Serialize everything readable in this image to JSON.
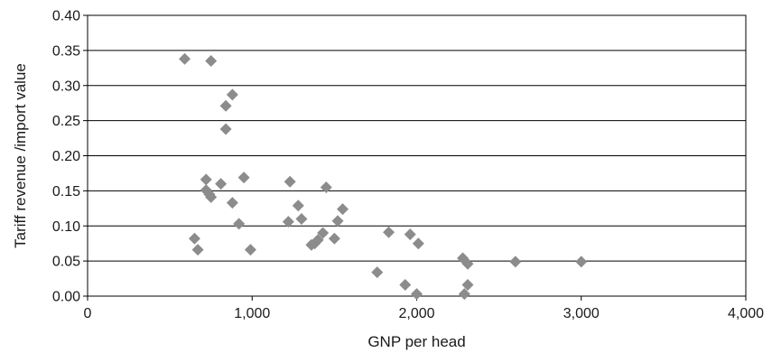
{
  "chart_data": {
    "type": "scatter",
    "title": "",
    "xlabel": "GNP per head",
    "ylabel": "Tariff revenue /import value",
    "xlim": [
      0,
      4000
    ],
    "ylim": [
      0,
      0.4
    ],
    "x_ticks": [
      "0",
      "1,000",
      "2,000",
      "3,000",
      "4,000"
    ],
    "x_tick_values": [
      0,
      1000,
      2000,
      3000,
      4000
    ],
    "y_ticks": [
      "0.00",
      "0.05",
      "0.10",
      "0.15",
      "0.20",
      "0.25",
      "0.30",
      "0.35",
      "0.40"
    ],
    "y_tick_values": [
      0,
      0.05,
      0.1,
      0.15,
      0.2,
      0.25,
      0.3,
      0.35,
      0.4
    ],
    "grid": "horizontal",
    "marker": "diamond",
    "marker_color": "#8c8c8c",
    "series": [
      {
        "points": [
          [
            590,
            0.338
          ],
          [
            750,
            0.335
          ],
          [
            880,
            0.287
          ],
          [
            840,
            0.271
          ],
          [
            840,
            0.238
          ],
          [
            720,
            0.166
          ],
          [
            810,
            0.16
          ],
          [
            950,
            0.169
          ],
          [
            1230,
            0.163
          ],
          [
            1450,
            0.155
          ],
          [
            720,
            0.151
          ],
          [
            740,
            0.145
          ],
          [
            750,
            0.141
          ],
          [
            880,
            0.133
          ],
          [
            1280,
            0.129
          ],
          [
            1550,
            0.124
          ],
          [
            1300,
            0.11
          ],
          [
            1220,
            0.106
          ],
          [
            1520,
            0.107
          ],
          [
            920,
            0.103
          ],
          [
            1830,
            0.091
          ],
          [
            1960,
            0.088
          ],
          [
            1430,
            0.09
          ],
          [
            1400,
            0.08
          ],
          [
            1380,
            0.075
          ],
          [
            1500,
            0.082
          ],
          [
            2010,
            0.075
          ],
          [
            1360,
            0.073
          ],
          [
            650,
            0.082
          ],
          [
            670,
            0.066
          ],
          [
            990,
            0.066
          ],
          [
            2280,
            0.054
          ],
          [
            2310,
            0.046
          ],
          [
            2600,
            0.049
          ],
          [
            3000,
            0.049
          ],
          [
            1760,
            0.034
          ],
          [
            1930,
            0.016
          ],
          [
            2310,
            0.016
          ],
          [
            2000,
            0.003
          ],
          [
            2290,
            0.003
          ]
        ]
      }
    ]
  }
}
